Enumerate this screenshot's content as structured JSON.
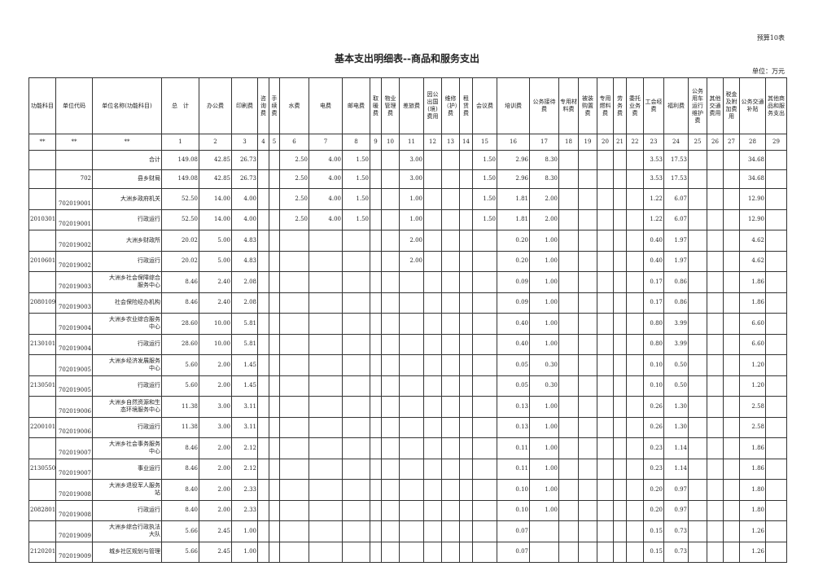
{
  "form_no": "预算10表",
  "title": "基本支出明细表--商品和服务支出",
  "unit": "单位：万元",
  "headers": [
    "功能科目",
    "单位代码",
    "单位名称(功能科目)",
    "总　计",
    "办公费",
    "印刷费",
    "咨询费",
    "手续费",
    "水费",
    "电费",
    "邮电费",
    "取暖费",
    "物业管理费",
    "差旅费",
    "因公出国(境)费用",
    "维修（护）费",
    "租赁费",
    "会议费",
    "培训费",
    "公务接待费",
    "专用材料费",
    "被装购置费",
    "专用燃料费",
    "劳务费",
    "委托业务费",
    "工会经费",
    "福利费",
    "公务用车运行维护费",
    "其他交通费用",
    "税金及附加费用",
    "公务交通补贴",
    "其他商品和服务支出"
  ],
  "number_row": [
    "**",
    "**",
    "**",
    "1",
    "2",
    "3",
    "4",
    "5",
    "6",
    "7",
    "8",
    "9",
    "10",
    "11",
    "12",
    "13",
    "14",
    "15",
    "16",
    "17",
    "18",
    "19",
    "20",
    "21",
    "22",
    "23",
    "24",
    "25",
    "26",
    "27",
    "28",
    "29"
  ],
  "rows": [
    {
      "func": "",
      "code": "",
      "name": "合计",
      "level": 0,
      "v": {
        "1": "149.08",
        "2": "42.85",
        "3": "26.73",
        "6": "2.50",
        "7": "4.00",
        "8": "1.50",
        "11": "3.00",
        "15": "1.50",
        "16": "2.96",
        "17": "8.30",
        "23": "3.53",
        "24": "17.53",
        "28": "34.68"
      }
    },
    {
      "func": "",
      "code": "702",
      "name": "县乡财局",
      "level": 0,
      "v": {
        "1": "149.08",
        "2": "42.85",
        "3": "26.73",
        "6": "2.50",
        "7": "4.00",
        "8": "1.50",
        "11": "3.00",
        "15": "1.50",
        "16": "2.96",
        "17": "8.30",
        "23": "3.53",
        "24": "17.53",
        "28": "34.68"
      }
    },
    {
      "func": "",
      "code": "702019001",
      "name": "大洲乡政府机关",
      "level": 1,
      "v": {
        "1": "52.50",
        "2": "14.00",
        "3": "4.00",
        "6": "2.50",
        "7": "4.00",
        "8": "1.50",
        "11": "1.00",
        "15": "1.50",
        "16": "1.81",
        "17": "2.00",
        "23": "1.22",
        "24": "6.07",
        "28": "12.90"
      }
    },
    {
      "func": "2010301",
      "code": "702019001",
      "name": "行政运行",
      "level": 2,
      "v": {
        "1": "52.50",
        "2": "14.00",
        "3": "4.00",
        "6": "2.50",
        "7": "4.00",
        "8": "1.50",
        "11": "1.00",
        "15": "1.50",
        "16": "1.81",
        "17": "2.00",
        "23": "1.22",
        "24": "6.07",
        "28": "12.90"
      }
    },
    {
      "func": "",
      "code": "702019002",
      "name": "大洲乡财政所",
      "level": 1,
      "v": {
        "1": "20.02",
        "2": "5.00",
        "3": "4.83",
        "11": "2.00",
        "16": "0.20",
        "17": "1.00",
        "23": "0.40",
        "24": "1.97",
        "28": "4.62"
      }
    },
    {
      "func": "2010601",
      "code": "702019002",
      "name": "行政运行",
      "level": 2,
      "v": {
        "1": "20.02",
        "2": "5.00",
        "3": "4.83",
        "11": "2.00",
        "16": "0.20",
        "17": "1.00",
        "23": "0.40",
        "24": "1.97",
        "28": "4.62"
      }
    },
    {
      "func": "",
      "code": "702019003",
      "name": "大洲乡社会保障综合服务中心",
      "level": 1,
      "v": {
        "1": "8.46",
        "2": "2.40",
        "3": "2.08",
        "16": "0.09",
        "17": "1.00",
        "23": "0.17",
        "24": "0.86",
        "28": "1.86"
      }
    },
    {
      "func": "2080109",
      "code": "702019003",
      "name": "社会保险经办机构",
      "level": 2,
      "v": {
        "1": "8.46",
        "2": "2.40",
        "3": "2.08",
        "16": "0.09",
        "17": "1.00",
        "23": "0.17",
        "24": "0.86",
        "28": "1.86"
      }
    },
    {
      "func": "",
      "code": "702019004",
      "name": "大洲乡农业综合服务中心",
      "level": 1,
      "v": {
        "1": "28.60",
        "2": "10.00",
        "3": "5.81",
        "16": "0.40",
        "17": "1.00",
        "23": "0.80",
        "24": "3.99",
        "28": "6.60"
      }
    },
    {
      "func": "2130101",
      "code": "702019004",
      "name": "行政运行",
      "level": 2,
      "v": {
        "1": "28.60",
        "2": "10.00",
        "3": "5.81",
        "16": "0.40",
        "17": "1.00",
        "23": "0.80",
        "24": "3.99",
        "28": "6.60"
      }
    },
    {
      "func": "",
      "code": "702019005",
      "name": "大洲乡经济发展服务中心",
      "level": 1,
      "v": {
        "1": "5.60",
        "2": "2.00",
        "3": "1.45",
        "16": "0.05",
        "17": "0.30",
        "23": "0.10",
        "24": "0.50",
        "28": "1.20"
      }
    },
    {
      "func": "2130501",
      "code": "702019005",
      "name": "行政运行",
      "level": 2,
      "v": {
        "1": "5.60",
        "2": "2.00",
        "3": "1.45",
        "16": "0.05",
        "17": "0.30",
        "23": "0.10",
        "24": "0.50",
        "28": "1.20"
      }
    },
    {
      "func": "",
      "code": "702019006",
      "name": "大洲乡自然资源和生态环境服务中心",
      "level": 1,
      "v": {
        "1": "11.38",
        "2": "3.00",
        "3": "3.11",
        "16": "0.13",
        "17": "1.00",
        "23": "0.26",
        "24": "1.30",
        "28": "2.58"
      }
    },
    {
      "func": "2200101",
      "code": "702019006",
      "name": "行政运行",
      "level": 2,
      "v": {
        "1": "11.38",
        "2": "3.00",
        "3": "3.11",
        "16": "0.13",
        "17": "1.00",
        "23": "0.26",
        "24": "1.30",
        "28": "2.58"
      }
    },
    {
      "func": "",
      "code": "702019007",
      "name": "大洲乡社会事务服务中心",
      "level": 1,
      "v": {
        "1": "8.46",
        "2": "2.00",
        "3": "2.12",
        "16": "0.11",
        "17": "1.00",
        "23": "0.23",
        "24": "1.14",
        "28": "1.86"
      }
    },
    {
      "func": "2130550",
      "code": "702019007",
      "name": "事业运行",
      "level": 2,
      "v": {
        "1": "8.46",
        "2": "2.00",
        "3": "2.12",
        "16": "0.11",
        "17": "1.00",
        "23": "0.23",
        "24": "1.14",
        "28": "1.86"
      }
    },
    {
      "func": "",
      "code": "702019008",
      "name": "大洲乡退役军人服务站",
      "level": 1,
      "v": {
        "1": "8.40",
        "2": "2.00",
        "3": "2.33",
        "16": "0.10",
        "17": "1.00",
        "23": "0.20",
        "24": "0.97",
        "28": "1.80"
      }
    },
    {
      "func": "2082801",
      "code": "702019008",
      "name": "行政运行",
      "level": 2,
      "v": {
        "1": "8.40",
        "2": "2.00",
        "3": "2.33",
        "16": "0.10",
        "17": "1.00",
        "23": "0.20",
        "24": "0.97",
        "28": "1.80"
      }
    },
    {
      "func": "",
      "code": "702019009",
      "name": "大洲乡综合行政执法大队",
      "level": 1,
      "v": {
        "1": "5.66",
        "2": "2.45",
        "3": "1.00",
        "16": "0.07",
        "23": "0.15",
        "24": "0.73",
        "28": "1.26"
      }
    },
    {
      "func": "2120201",
      "code": "702019009",
      "name": "城乡社区规划与管理",
      "level": 2,
      "v": {
        "1": "5.66",
        "2": "2.45",
        "3": "1.00",
        "16": "0.07",
        "23": "0.15",
        "24": "0.73",
        "28": "1.26"
      }
    }
  ]
}
